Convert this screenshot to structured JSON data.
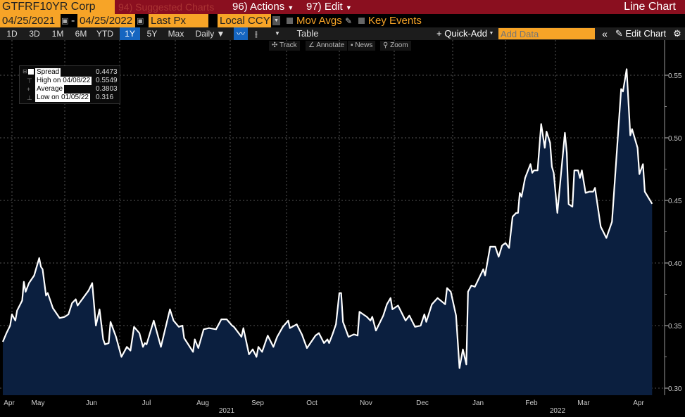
{
  "toolbar": {
    "ticker": "GTFRF10YR Corp",
    "suggested": "94) Suggested Charts",
    "actions": "96) Actions",
    "edit": "97) Edit",
    "view_title": "Line Chart",
    "start_date": "04/25/2021",
    "end_date": "04/25/2022",
    "dash": "-",
    "field": "Last Px",
    "currency": "Local CCY",
    "mov_avgs": "Mov Avgs",
    "key_events": "Key Events",
    "periods": [
      "1D",
      "3D",
      "1M",
      "6M",
      "YTD",
      "1Y",
      "5Y",
      "Max"
    ],
    "selected_period": "1Y",
    "frequency": "Daily ▼",
    "table": "Table",
    "quick_add": "+ Quick-Add",
    "add_data_placeholder": "Add Data",
    "edit_chart": "Edit Chart",
    "tools": [
      "Track",
      "Annotate",
      "News",
      "Zoom"
    ]
  },
  "legend": {
    "rows": [
      {
        "label": "Spread",
        "value": "0.4473"
      },
      {
        "label": "High on 04/08/22",
        "value": "0.5549"
      },
      {
        "label": "Average",
        "value": "0.3803"
      },
      {
        "label": "Low on 01/05/22",
        "value": "0.316"
      }
    ]
  },
  "colors": {
    "line": "#ffffff",
    "fill": "#0b1f3f",
    "header": "#8a0f1f",
    "accent": "#f7a427",
    "selected": "#1565c0"
  },
  "chart_data": {
    "type": "area",
    "title": "",
    "xlabel": "",
    "ylabel": "",
    "ylim": [
      0.295,
      0.565
    ],
    "yticks": [
      "0.30",
      "0.35",
      "0.40",
      "0.45",
      "0.50",
      "0.55"
    ],
    "xtick_labels": [
      "Apr",
      "May",
      "Jun",
      "Jul",
      "Aug",
      "Sep",
      "Oct",
      "Nov",
      "Dec",
      "Jan",
      "Feb",
      "Mar",
      "Apr"
    ],
    "year_labels": [
      "2021",
      "2022"
    ],
    "grid": true,
    "legend_position": "top-left",
    "y_axis_side": "right",
    "series": [
      {
        "name": "Spread",
        "points": [
          [
            "2021-04-26",
            0.337
          ],
          [
            "2021-04-28",
            0.344
          ],
          [
            "2021-04-30",
            0.35
          ],
          [
            "2021-05-01",
            0.359
          ],
          [
            "2021-05-03",
            0.354
          ],
          [
            "2021-05-04",
            0.362
          ],
          [
            "2021-05-07",
            0.37
          ],
          [
            "2021-05-08",
            0.385
          ],
          [
            "2021-05-09",
            0.377
          ],
          [
            "2021-05-11",
            0.384
          ],
          [
            "2021-05-14",
            0.39
          ],
          [
            "2021-05-17",
            0.404
          ],
          [
            "2021-05-18",
            0.397
          ],
          [
            "2021-05-19",
            0.395
          ],
          [
            "2021-05-21",
            0.374
          ],
          [
            "2021-05-22",
            0.376
          ],
          [
            "2021-05-25",
            0.364
          ],
          [
            "2021-05-29",
            0.356
          ],
          [
            "2021-06-01",
            0.357
          ],
          [
            "2021-06-03",
            0.359
          ],
          [
            "2021-06-05",
            0.368
          ],
          [
            "2021-06-07",
            0.371
          ],
          [
            "2021-06-08",
            0.366
          ],
          [
            "2021-06-10",
            0.37
          ],
          [
            "2021-06-14",
            0.378
          ],
          [
            "2021-06-16",
            0.384
          ],
          [
            "2021-06-18",
            0.35
          ],
          [
            "2021-06-20",
            0.363
          ],
          [
            "2021-06-22",
            0.339
          ],
          [
            "2021-06-23",
            0.335
          ],
          [
            "2021-06-25",
            0.336
          ],
          [
            "2021-06-26",
            0.353
          ],
          [
            "2021-06-29",
            0.341
          ],
          [
            "2021-07-02",
            0.325
          ],
          [
            "2021-07-05",
            0.333
          ],
          [
            "2021-07-07",
            0.33
          ],
          [
            "2021-07-09",
            0.349
          ],
          [
            "2021-07-12",
            0.344
          ],
          [
            "2021-07-14",
            0.333
          ],
          [
            "2021-07-15",
            0.336
          ],
          [
            "2021-07-16",
            0.335
          ],
          [
            "2021-07-20",
            0.354
          ],
          [
            "2021-07-24",
            0.333
          ],
          [
            "2021-07-29",
            0.363
          ],
          [
            "2021-07-31",
            0.354
          ],
          [
            "2021-08-03",
            0.349
          ],
          [
            "2021-08-05",
            0.35
          ],
          [
            "2021-08-06",
            0.34
          ],
          [
            "2021-08-11",
            0.329
          ],
          [
            "2021-08-12",
            0.339
          ],
          [
            "2021-08-14",
            0.332
          ],
          [
            "2021-08-17",
            0.347
          ],
          [
            "2021-08-20",
            0.348
          ],
          [
            "2021-08-24",
            0.347
          ],
          [
            "2021-08-27",
            0.355
          ],
          [
            "2021-08-30",
            0.355
          ],
          [
            "2021-09-02",
            0.35
          ],
          [
            "2021-09-03",
            0.349
          ],
          [
            "2021-09-07",
            0.341
          ],
          [
            "2021-09-08",
            0.348
          ],
          [
            "2021-09-11",
            0.327
          ],
          [
            "2021-09-13",
            0.331
          ],
          [
            "2021-09-15",
            0.325
          ],
          [
            "2021-09-16",
            0.333
          ],
          [
            "2021-09-18",
            0.329
          ],
          [
            "2021-09-21",
            0.342
          ],
          [
            "2021-09-24",
            0.333
          ],
          [
            "2021-09-26",
            0.341
          ],
          [
            "2021-09-29",
            0.349
          ],
          [
            "2021-10-02",
            0.354
          ],
          [
            "2021-10-03",
            0.348
          ],
          [
            "2021-10-07",
            0.351
          ],
          [
            "2021-10-10",
            0.343
          ],
          [
            "2021-10-13",
            0.332
          ],
          [
            "2021-10-18",
            0.342
          ],
          [
            "2021-10-20",
            0.344
          ],
          [
            "2021-10-23",
            0.336
          ],
          [
            "2021-10-25",
            0.339
          ],
          [
            "2021-10-26",
            0.336
          ],
          [
            "2021-10-28",
            0.343
          ],
          [
            "2021-10-30",
            0.351
          ],
          [
            "2021-11-01",
            0.376
          ],
          [
            "2021-11-02",
            0.376
          ],
          [
            "2021-11-03",
            0.353
          ],
          [
            "2021-11-06",
            0.341
          ],
          [
            "2021-11-09",
            0.343
          ],
          [
            "2021-11-11",
            0.342
          ],
          [
            "2021-11-12",
            0.361
          ],
          [
            "2021-11-16",
            0.357
          ],
          [
            "2021-11-18",
            0.354
          ],
          [
            "2021-11-19",
            0.357
          ],
          [
            "2021-11-21",
            0.346
          ],
          [
            "2021-11-25",
            0.358
          ],
          [
            "2021-11-27",
            0.367
          ],
          [
            "2021-11-29",
            0.372
          ],
          [
            "2021-11-30",
            0.363
          ],
          [
            "2021-12-03",
            0.366
          ],
          [
            "2021-12-07",
            0.354
          ],
          [
            "2021-12-09",
            0.358
          ],
          [
            "2021-12-12",
            0.349
          ],
          [
            "2021-12-15",
            0.35
          ],
          [
            "2021-12-17",
            0.359
          ],
          [
            "2021-12-18",
            0.353
          ],
          [
            "2021-12-21",
            0.367
          ],
          [
            "2021-12-24",
            0.372
          ],
          [
            "2021-12-28",
            0.367
          ],
          [
            "2021-12-29",
            0.38
          ],
          [
            "2021-12-31",
            0.377
          ],
          [
            "2022-01-03",
            0.358
          ],
          [
            "2022-01-05",
            0.316
          ],
          [
            "2022-01-07",
            0.331
          ],
          [
            "2022-01-09",
            0.319
          ],
          [
            "2022-01-10",
            0.377
          ],
          [
            "2022-01-12",
            0.382
          ],
          [
            "2022-01-14",
            0.381
          ],
          [
            "2022-01-19",
            0.395
          ],
          [
            "2022-01-20",
            0.39
          ],
          [
            "2022-01-23",
            0.413
          ],
          [
            "2022-01-26",
            0.413
          ],
          [
            "2022-01-28",
            0.405
          ],
          [
            "2022-01-30",
            0.414
          ],
          [
            "2022-02-01",
            0.416
          ],
          [
            "2022-02-03",
            0.412
          ],
          [
            "2022-02-05",
            0.437
          ],
          [
            "2022-02-07",
            0.44
          ],
          [
            "2022-02-08",
            0.44
          ],
          [
            "2022-02-09",
            0.456
          ],
          [
            "2022-02-10",
            0.453
          ],
          [
            "2022-02-12",
            0.468
          ],
          [
            "2022-02-15",
            0.479
          ],
          [
            "2022-02-16",
            0.472
          ],
          [
            "2022-02-17",
            0.474
          ],
          [
            "2022-02-19",
            0.474
          ],
          [
            "2022-02-21",
            0.511
          ],
          [
            "2022-02-23",
            0.492
          ],
          [
            "2022-02-24",
            0.505
          ],
          [
            "2022-02-26",
            0.496
          ],
          [
            "2022-02-27",
            0.477
          ],
          [
            "2022-02-28",
            0.472
          ],
          [
            "2022-03-02",
            0.44
          ],
          [
            "2022-03-06",
            0.504
          ],
          [
            "2022-03-07",
            0.488
          ],
          [
            "2022-03-08",
            0.447
          ],
          [
            "2022-03-10",
            0.445
          ],
          [
            "2022-03-11",
            0.474
          ],
          [
            "2022-03-13",
            0.474
          ],
          [
            "2022-03-14",
            0.468
          ],
          [
            "2022-03-15",
            0.474
          ],
          [
            "2022-03-17",
            0.456
          ],
          [
            "2022-03-19",
            0.457
          ],
          [
            "2022-03-21",
            0.457
          ],
          [
            "2022-03-22",
            0.46
          ],
          [
            "2022-03-25",
            0.429
          ],
          [
            "2022-03-28",
            0.42
          ],
          [
            "2022-03-31",
            0.433
          ],
          [
            "2022-04-05",
            0.539
          ],
          [
            "2022-04-06",
            0.537
          ],
          [
            "2022-04-08",
            0.5549
          ],
          [
            "2022-04-10",
            0.502
          ],
          [
            "2022-04-11",
            0.507
          ],
          [
            "2022-04-14",
            0.492
          ],
          [
            "2022-04-15",
            0.471
          ],
          [
            "2022-04-17",
            0.479
          ],
          [
            "2022-04-18",
            0.457
          ],
          [
            "2022-04-22",
            0.4473
          ]
        ]
      }
    ]
  }
}
